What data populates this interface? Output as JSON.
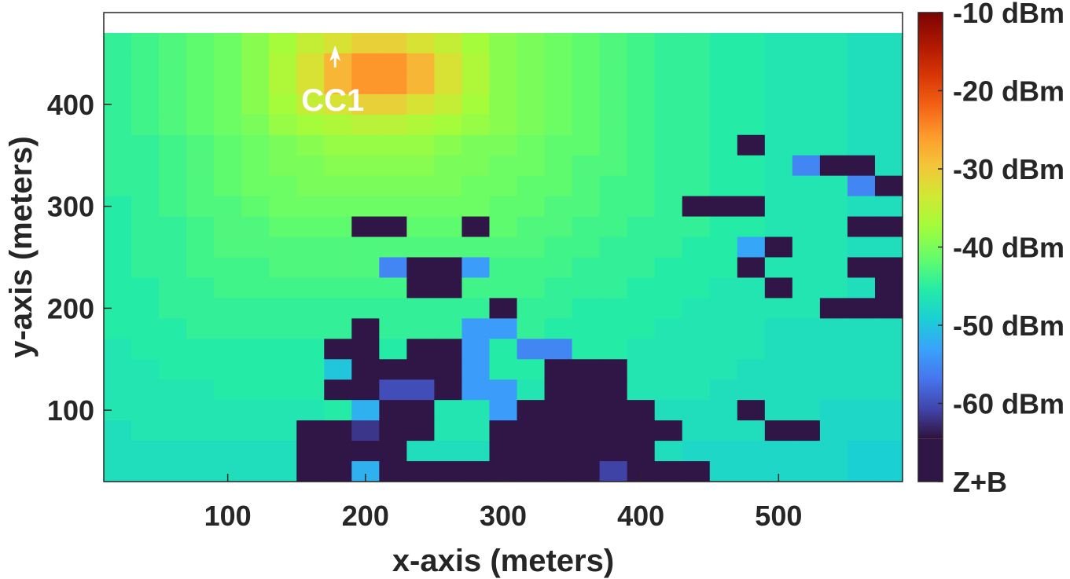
{
  "chart_data": {
    "type": "heatmap",
    "title": "",
    "xlabel": "x-axis (meters)",
    "ylabel": "y-axis (meters)",
    "xlim": [
      10,
      590
    ],
    "ylim": [
      30,
      490
    ],
    "x_ticks": [
      100,
      200,
      300,
      400,
      500
    ],
    "y_ticks": [
      100,
      200,
      300,
      400
    ],
    "grid": false,
    "legend": "colorbar-right",
    "colorbar": {
      "range": [
        -70,
        -10
      ],
      "ticks": [
        {
          "value": -10,
          "label": "-10 dBm"
        },
        {
          "value": -20,
          "label": "-20 dBm"
        },
        {
          "value": -30,
          "label": "-30 dBm"
        },
        {
          "value": -40,
          "label": "-40 dBm"
        },
        {
          "value": -50,
          "label": "-50 dBm"
        },
        {
          "value": -60,
          "label": "-60 dBm"
        },
        {
          "value": -70,
          "label": "Z+B"
        }
      ],
      "low_color": "#2f1646"
    },
    "cell_size_m": 20,
    "grid_x_start": 10,
    "grid_y_start": 30,
    "annotations": [
      {
        "text": "CC1",
        "x": 178,
        "y": 447,
        "marker": "arrow"
      }
    ],
    "z_rows_top_to_bottom": [
      [
        -48,
        -47,
        -46,
        -45,
        -44,
        -42,
        -40,
        -37,
        -35,
        -33,
        -33,
        -35,
        -37,
        -40,
        -42,
        -43,
        -44,
        -45,
        -46,
        -47,
        -48,
        -48,
        -49,
        -49,
        -50,
        -50,
        -50,
        -51,
        -51
      ],
      [
        -48,
        -47,
        -46,
        -45,
        -44,
        -42,
        -39,
        -35,
        -30,
        -27,
        -27,
        -30,
        -35,
        -39,
        -42,
        -43,
        -44,
        -45,
        -46,
        -47,
        -48,
        -48,
        -49,
        -49,
        -50,
        -50,
        -50,
        -51,
        -51
      ],
      [
        -48,
        -47,
        -46,
        -45,
        -44,
        -42,
        -39,
        -35,
        -30,
        -27,
        -27,
        -30,
        -35,
        -39,
        -42,
        -43,
        -44,
        -45,
        -46,
        -47,
        -48,
        -48,
        -49,
        -49,
        -50,
        -50,
        -50,
        -51,
        -51
      ],
      [
        -48,
        -47,
        -46,
        -45,
        -44,
        -42,
        -40,
        -37,
        -35,
        -33,
        -33,
        -35,
        -37,
        -40,
        -42,
        -43,
        -44,
        -45,
        -46,
        -47,
        -48,
        -48,
        -49,
        -49,
        -50,
        -50,
        -50,
        -51,
        -51
      ],
      [
        -48,
        -47,
        -46,
        -45,
        -44,
        -43,
        -41,
        -40,
        -39,
        -38,
        -38,
        -39,
        -40,
        -41,
        -42,
        -43,
        -44,
        -45,
        -46,
        -47,
        -48,
        -48,
        -49,
        -49,
        -50,
        -50,
        -50,
        -51,
        -51
      ],
      [
        -48,
        -48,
        -47,
        -46,
        -45,
        -44,
        -43,
        -42,
        -41,
        -41,
        -41,
        -41,
        -42,
        -43,
        -43,
        -44,
        -45,
        -45,
        -46,
        -47,
        -48,
        -48,
        -49,
        -70,
        -50,
        -50,
        -50,
        -51,
        -51
      ],
      [
        -48,
        -48,
        -47,
        -46,
        -45,
        -44,
        -43,
        -43,
        -42,
        -42,
        -42,
        -42,
        -43,
        -43,
        -44,
        -44,
        -45,
        -46,
        -46,
        -47,
        -48,
        -48,
        -49,
        -49,
        -50,
        -60,
        -70,
        -70,
        -51
      ],
      [
        -48,
        -48,
        -47,
        -46,
        -45,
        -44,
        -44,
        -43,
        -43,
        -43,
        -43,
        -43,
        -43,
        -44,
        -44,
        -45,
        -45,
        -46,
        -47,
        -47,
        -48,
        -48,
        -49,
        -49,
        -50,
        -50,
        -50,
        -60,
        -70,
        -62
      ],
      [
        -49,
        -48,
        -47,
        -46,
        -46,
        -45,
        -44,
        -44,
        -44,
        -44,
        -44,
        -44,
        -44,
        -44,
        -45,
        -45,
        -46,
        -46,
        -47,
        -47,
        -48,
        -70,
        -70,
        -70,
        -50,
        -50,
        -50,
        -51,
        -51
      ],
      [
        -49,
        -48,
        -48,
        -47,
        -46,
        -46,
        -45,
        -45,
        -45,
        -70,
        -70,
        -45,
        -45,
        -70,
        -45,
        -46,
        -46,
        -47,
        -47,
        -48,
        -48,
        -48,
        -49,
        -49,
        -50,
        -50,
        -50,
        -70,
        -70
      ],
      [
        -49,
        -48,
        -48,
        -47,
        -46,
        -46,
        -46,
        -46,
        -46,
        -46,
        -46,
        -46,
        -46,
        -46,
        -46,
        -46,
        -47,
        -47,
        -48,
        -48,
        -48,
        -49,
        -49,
        -57,
        -70,
        -50,
        -50,
        -51,
        -51
      ],
      [
        -49,
        -48,
        -48,
        -47,
        -47,
        -47,
        -46,
        -46,
        -46,
        -46,
        -60,
        -70,
        -70,
        -58,
        -47,
        -47,
        -47,
        -48,
        -48,
        -48,
        -49,
        -49,
        -49,
        -70,
        -50,
        -50,
        -50,
        -70,
        -70
      ],
      [
        -49,
        -49,
        -48,
        -48,
        -47,
        -47,
        -47,
        -47,
        -47,
        -47,
        -47,
        -70,
        -70,
        -47,
        -47,
        -47,
        -48,
        -48,
        -48,
        -49,
        -49,
        -49,
        -50,
        -50,
        -70,
        -50,
        -50,
        -51,
        -70
      ],
      [
        -49,
        -49,
        -48,
        -48,
        -48,
        -48,
        -48,
        -48,
        -48,
        -48,
        -48,
        -48,
        -48,
        -48,
        -70,
        -48,
        -48,
        -49,
        -49,
        -49,
        -49,
        -50,
        -50,
        -50,
        -50,
        -50,
        -70,
        -70,
        -70
      ],
      [
        -49,
        -49,
        -49,
        -48,
        -48,
        -48,
        -48,
        -48,
        -48,
        -70,
        -48,
        -48,
        -48,
        -58,
        -58,
        -48,
        -49,
        -49,
        -49,
        -49,
        -50,
        -50,
        -50,
        -50,
        -51,
        -51,
        -51,
        -51,
        -51
      ],
      [
        -50,
        -49,
        -49,
        -49,
        -49,
        -49,
        -49,
        -49,
        -70,
        -70,
        -49,
        -70,
        -70,
        -58,
        -49,
        -60,
        -60,
        -49,
        -49,
        -50,
        -50,
        -50,
        -50,
        -50,
        -51,
        -51,
        -51,
        -51,
        -51
      ],
      [
        -50,
        -50,
        -49,
        -49,
        -49,
        -49,
        -49,
        -49,
        -54,
        -70,
        -70,
        -70,
        -70,
        -58,
        -49,
        -49,
        -70,
        -70,
        -70,
        -50,
        -50,
        -50,
        -50,
        -51,
        -51,
        -51,
        -51,
        -51,
        -51
      ],
      [
        -50,
        -50,
        -50,
        -50,
        -49,
        -49,
        -49,
        -49,
        -70,
        -70,
        -65,
        -65,
        -70,
        -58,
        -58,
        -50,
        -70,
        -70,
        -70,
        -50,
        -50,
        -50,
        -51,
        -51,
        -51,
        -51,
        -51,
        -51,
        -51
      ],
      [
        -50,
        -50,
        -50,
        -50,
        -50,
        -50,
        -50,
        -50,
        -49,
        -56,
        -70,
        -70,
        -50,
        -50,
        -58,
        -70,
        -70,
        -70,
        -70,
        -70,
        -51,
        -51,
        -51,
        -70,
        -51,
        -51,
        -52,
        -52,
        -52
      ],
      [
        -51,
        -50,
        -50,
        -50,
        -50,
        -50,
        -50,
        -70,
        -70,
        -67,
        -70,
        -70,
        -50,
        -50,
        -70,
        -70,
        -70,
        -70,
        -70,
        -70,
        -70,
        -51,
        -51,
        -51,
        -70,
        -70,
        -52,
        -52,
        -52
      ],
      [
        -51,
        -51,
        -51,
        -51,
        -51,
        -51,
        -51,
        -70,
        -70,
        -70,
        -70,
        -51,
        -51,
        -51,
        -70,
        -70,
        -70,
        -70,
        -70,
        -70,
        -51,
        -52,
        -52,
        -52,
        -52,
        -52,
        -52,
        -53,
        -53
      ],
      [
        -51,
        -51,
        -51,
        -51,
        -51,
        -51,
        -51,
        -70,
        -70,
        -56,
        -70,
        -70,
        -70,
        -70,
        -70,
        -70,
        -70,
        -70,
        -66,
        -70,
        -70,
        -70,
        -52,
        -52,
        -52,
        -52,
        -52,
        -53,
        -53
      ]
    ]
  }
}
